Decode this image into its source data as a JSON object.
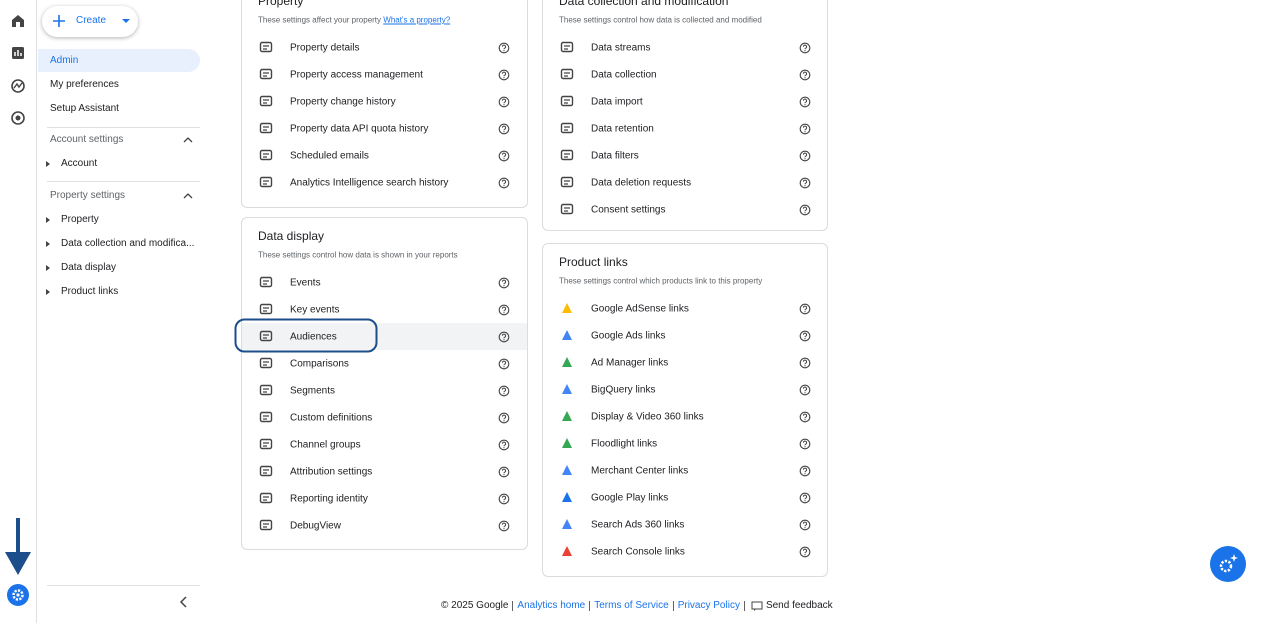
{
  "create_button": "Create",
  "nav": {
    "items": [
      "Admin",
      "My preferences",
      "Setup Assistant"
    ],
    "sections": [
      {
        "title": "Account settings",
        "items": [
          "Account"
        ]
      },
      {
        "title": "Property settings",
        "items": [
          "Property",
          "Data collection and modifica...",
          "Data display",
          "Product links"
        ]
      }
    ]
  },
  "cards": [
    {
      "title": "Property",
      "description": "These settings affect your property",
      "link": "What's a property?",
      "items": [
        "Property details",
        "Property access management",
        "Property change history",
        "Property data API quota history",
        "Scheduled emails",
        "Analytics Intelligence search history"
      ]
    },
    {
      "title": "Data collection and modification",
      "description": "These settings control how data is collected and modified",
      "items": [
        "Data streams",
        "Data collection",
        "Data import",
        "Data retention",
        "Data filters",
        "Data deletion requests",
        "Consent settings"
      ]
    },
    {
      "title": "Data display",
      "description": "These settings control how data is shown in your reports",
      "items": [
        "Events",
        "Key events",
        "Audiences",
        "Comparisons",
        "Segments",
        "Custom definitions",
        "Channel groups",
        "Attribution settings",
        "Reporting identity",
        "DebugView"
      ]
    },
    {
      "title": "Product links",
      "description": "These settings control which products link to this property",
      "items": [
        "Google AdSense links",
        "Google Ads links",
        "Ad Manager links",
        "BigQuery links",
        "Display & Video 360 links",
        "Floodlight links",
        "Merchant Center links",
        "Google Play links",
        "Search Ads 360 links",
        "Search Console links"
      ]
    }
  ],
  "footer": {
    "copyright": "© 2025 Google",
    "links": [
      "Analytics home",
      "Terms of Service",
      "Privacy Policy"
    ],
    "feedback": "Send feedback"
  }
}
